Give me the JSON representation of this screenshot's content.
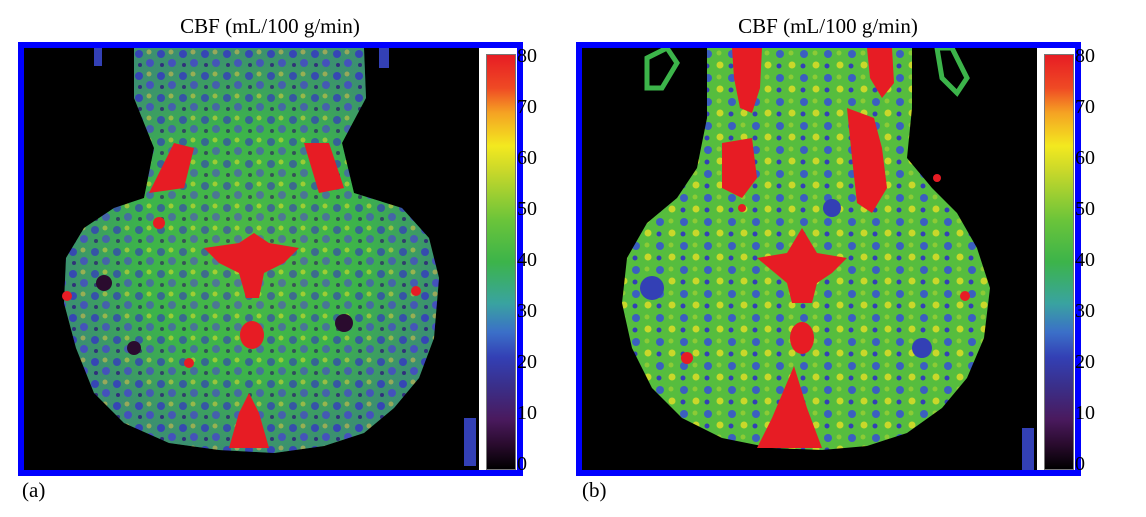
{
  "panels": [
    {
      "id": "a",
      "title": "CBF (mL/100 g/min)",
      "label": "(a)",
      "colorbar": {
        "min": 0,
        "max": 80,
        "ticks": [
          "80",
          "70",
          "60",
          "50",
          "40",
          "30",
          "20",
          "10",
          "0"
        ]
      }
    },
    {
      "id": "b",
      "title": "CBF (mL/100 g/min)",
      "label": "(b)",
      "colorbar": {
        "min": 0,
        "max": 80,
        "ticks": [
          "80",
          "70",
          "60",
          "50",
          "40",
          "30",
          "20",
          "10",
          "0"
        ]
      }
    }
  ],
  "colors": {
    "frame": "#0000ff",
    "background": "#000000",
    "high": "#e71c24",
    "mid": "#3cb44a",
    "low": "#3340b5"
  }
}
